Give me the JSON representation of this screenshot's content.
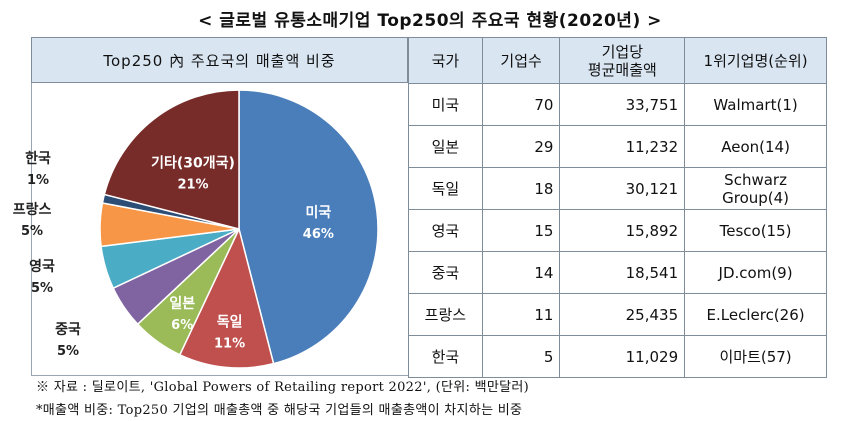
{
  "title": "< 글로벌 유통소매기업 Top250의 주요국 현황(2020년) >",
  "chart_data": {
    "type": "pie",
    "title": "Top250 內 주요국의 매출액 비중",
    "slices": [
      {
        "label": "미국",
        "value": 46,
        "value_label": "46%",
        "color": "#4a7ebb"
      },
      {
        "label": "독일",
        "value": 11,
        "value_label": "11%",
        "color": "#c0504d"
      },
      {
        "label": "일본",
        "value": 6,
        "value_label": "6%",
        "color": "#9bbb59"
      },
      {
        "label": "중국",
        "value": 5,
        "value_label": "5%",
        "color": "#8064a2"
      },
      {
        "label": "영국",
        "value": 5,
        "value_label": "5%",
        "color": "#4bacc6"
      },
      {
        "label": "프랑스",
        "value": 5,
        "value_label": "5%",
        "color": "#f79646"
      },
      {
        "label": "한국",
        "value": 1,
        "value_label": "1%",
        "color": "#2c4d75"
      },
      {
        "label": "기타(30개국)",
        "value": 21,
        "value_label": "21%",
        "color": "#772c2a"
      }
    ]
  },
  "table": {
    "headers": [
      "국가",
      "기업수",
      "기업당\n평균매출액",
      "1위기업명(순위)"
    ],
    "rows": [
      [
        "미국",
        "70",
        "33,751",
        "Walmart(1)"
      ],
      [
        "일본",
        "29",
        "11,232",
        "Aeon(14)"
      ],
      [
        "독일",
        "18",
        "30,121",
        "Schwarz Group(4)"
      ],
      [
        "영국",
        "15",
        "15,892",
        "Tesco(15)"
      ],
      [
        "중국",
        "14",
        "18,541",
        "JD.com(9)"
      ],
      [
        "프랑스",
        "11",
        "25,435",
        "E.Leclerc(26)"
      ],
      [
        "한국",
        "5",
        "11,029",
        "이마트(57)"
      ]
    ]
  },
  "footnotes": [
    "※ 자료 : 딜로이트, 'Global Powers of Retailing report 2022', (단위: 백만달러)",
    "*매출액 비중: Top250 기업의 매출총액 중 해당국 기업들의 매출총액이 차지하는 비중"
  ]
}
